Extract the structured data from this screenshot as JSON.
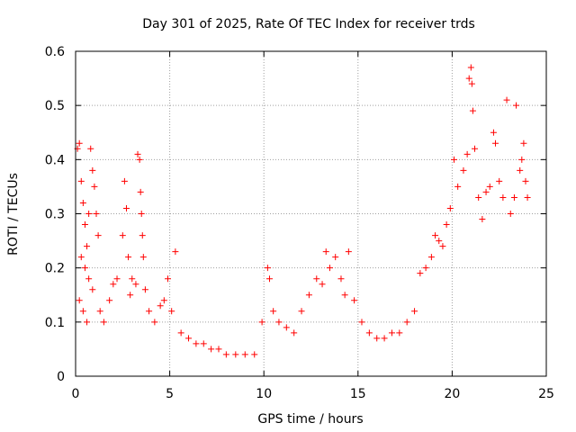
{
  "chart_data": {
    "type": "scatter",
    "title": "Day 301 of 2025, Rate Of TEC Index for receiver trds",
    "xlabel": "GPS time / hours",
    "ylabel": "ROTI / TECUs",
    "xlim": [
      0,
      25
    ],
    "ylim": [
      0,
      0.6
    ],
    "xticks": [
      "0",
      "5",
      "10",
      "15",
      "20",
      "25"
    ],
    "yticks": [
      "0",
      "0.1",
      "0.2",
      "0.3",
      "0.4",
      "0.5",
      "0.6"
    ],
    "grid": true,
    "marker": "+",
    "color": "#ff0000",
    "series": [
      {
        "points": [
          [
            0.1,
            0.42
          ],
          [
            0.2,
            0.43
          ],
          [
            0.3,
            0.36
          ],
          [
            0.4,
            0.32
          ],
          [
            0.5,
            0.28
          ],
          [
            0.6,
            0.24
          ],
          [
            0.7,
            0.3
          ],
          [
            0.8,
            0.42
          ],
          [
            0.9,
            0.38
          ],
          [
            1.0,
            0.35
          ],
          [
            1.1,
            0.3
          ],
          [
            1.2,
            0.26
          ],
          [
            0.3,
            0.22
          ],
          [
            0.5,
            0.2
          ],
          [
            0.7,
            0.18
          ],
          [
            0.9,
            0.16
          ],
          [
            0.2,
            0.14
          ],
          [
            0.4,
            0.12
          ],
          [
            0.6,
            0.1
          ],
          [
            1.3,
            0.12
          ],
          [
            1.5,
            0.1
          ],
          [
            1.8,
            0.14
          ],
          [
            2.0,
            0.17
          ],
          [
            2.2,
            0.18
          ],
          [
            2.5,
            0.26
          ],
          [
            2.6,
            0.36
          ],
          [
            2.7,
            0.31
          ],
          [
            2.8,
            0.22
          ],
          [
            2.9,
            0.15
          ],
          [
            3.0,
            0.18
          ],
          [
            3.2,
            0.17
          ],
          [
            3.3,
            0.41
          ],
          [
            3.4,
            0.4
          ],
          [
            3.45,
            0.34
          ],
          [
            3.5,
            0.3
          ],
          [
            3.55,
            0.26
          ],
          [
            3.6,
            0.22
          ],
          [
            3.7,
            0.16
          ],
          [
            3.9,
            0.12
          ],
          [
            4.2,
            0.1
          ],
          [
            4.5,
            0.13
          ],
          [
            4.7,
            0.14
          ],
          [
            4.9,
            0.18
          ],
          [
            5.1,
            0.12
          ],
          [
            5.3,
            0.23
          ],
          [
            5.6,
            0.08
          ],
          [
            6.0,
            0.07
          ],
          [
            6.4,
            0.06
          ],
          [
            6.8,
            0.06
          ],
          [
            7.2,
            0.05
          ],
          [
            7.6,
            0.05
          ],
          [
            8.0,
            0.04
          ],
          [
            8.5,
            0.04
          ],
          [
            9.0,
            0.04
          ],
          [
            9.5,
            0.04
          ],
          [
            9.9,
            0.1
          ],
          [
            10.2,
            0.2
          ],
          [
            10.3,
            0.18
          ],
          [
            10.5,
            0.12
          ],
          [
            10.8,
            0.1
          ],
          [
            11.2,
            0.09
          ],
          [
            11.6,
            0.08
          ],
          [
            12.0,
            0.12
          ],
          [
            12.4,
            0.15
          ],
          [
            12.8,
            0.18
          ],
          [
            13.1,
            0.17
          ],
          [
            13.3,
            0.23
          ],
          [
            13.5,
            0.2
          ],
          [
            13.8,
            0.22
          ],
          [
            14.1,
            0.18
          ],
          [
            14.3,
            0.15
          ],
          [
            14.5,
            0.23
          ],
          [
            14.8,
            0.14
          ],
          [
            15.2,
            0.1
          ],
          [
            15.6,
            0.08
          ],
          [
            16.0,
            0.07
          ],
          [
            16.4,
            0.07
          ],
          [
            16.8,
            0.08
          ],
          [
            17.2,
            0.08
          ],
          [
            17.6,
            0.1
          ],
          [
            18.0,
            0.12
          ],
          [
            18.3,
            0.19
          ],
          [
            18.6,
            0.2
          ],
          [
            18.9,
            0.22
          ],
          [
            19.1,
            0.26
          ],
          [
            19.3,
            0.25
          ],
          [
            19.5,
            0.24
          ],
          [
            19.7,
            0.28
          ],
          [
            19.9,
            0.31
          ],
          [
            20.1,
            0.4
          ],
          [
            20.3,
            0.35
          ],
          [
            20.6,
            0.38
          ],
          [
            20.8,
            0.41
          ],
          [
            20.9,
            0.55
          ],
          [
            21.0,
            0.57
          ],
          [
            21.05,
            0.54
          ],
          [
            21.1,
            0.49
          ],
          [
            21.2,
            0.42
          ],
          [
            21.4,
            0.33
          ],
          [
            21.6,
            0.29
          ],
          [
            21.8,
            0.34
          ],
          [
            22.0,
            0.35
          ],
          [
            22.2,
            0.45
          ],
          [
            22.3,
            0.43
          ],
          [
            22.5,
            0.36
          ],
          [
            22.7,
            0.33
          ],
          [
            22.9,
            0.51
          ],
          [
            23.1,
            0.3
          ],
          [
            23.3,
            0.33
          ],
          [
            23.4,
            0.5
          ],
          [
            23.6,
            0.38
          ],
          [
            23.7,
            0.4
          ],
          [
            23.8,
            0.43
          ],
          [
            23.9,
            0.36
          ],
          [
            24.0,
            0.33
          ]
        ]
      }
    ]
  }
}
